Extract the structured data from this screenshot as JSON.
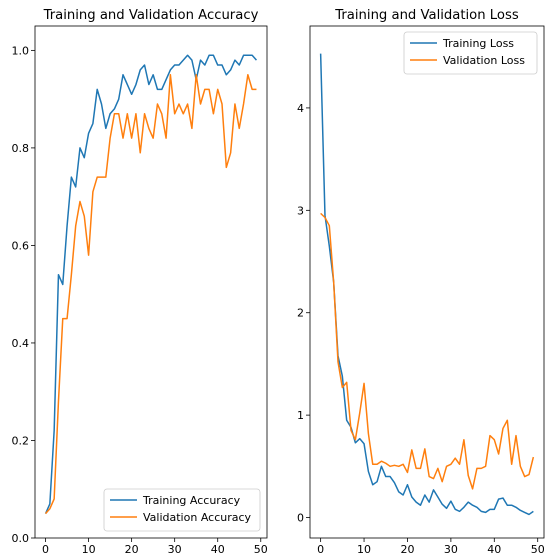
{
  "chart_data": [
    {
      "type": "line",
      "title": "Training and Validation Accuracy",
      "xlabel": "",
      "ylabel": "",
      "xlim": [
        -2.45,
        51.45
      ],
      "ylim": [
        0.0,
        1.05
      ],
      "xticks": [
        0,
        10,
        20,
        30,
        40,
        50
      ],
      "yticks": [
        0.0,
        0.2,
        0.4,
        0.6,
        0.8,
        1.0
      ],
      "legend": "lower-right",
      "grid": false,
      "x": [
        0,
        1,
        2,
        3,
        4,
        5,
        6,
        7,
        8,
        9,
        10,
        11,
        12,
        13,
        14,
        15,
        16,
        17,
        18,
        19,
        20,
        21,
        22,
        23,
        24,
        25,
        26,
        27,
        28,
        29,
        30,
        31,
        32,
        33,
        34,
        35,
        36,
        37,
        38,
        39,
        40,
        41,
        42,
        43,
        44,
        45,
        46,
        47,
        48,
        49
      ],
      "series": [
        {
          "name": "Training Accuracy",
          "color": "#1f77b4",
          "values": [
            0.05,
            0.07,
            0.22,
            0.54,
            0.52,
            0.64,
            0.74,
            0.72,
            0.8,
            0.78,
            0.83,
            0.85,
            0.92,
            0.89,
            0.84,
            0.87,
            0.88,
            0.9,
            0.95,
            0.93,
            0.91,
            0.93,
            0.96,
            0.97,
            0.93,
            0.95,
            0.92,
            0.92,
            0.94,
            0.96,
            0.97,
            0.97,
            0.98,
            0.99,
            0.98,
            0.94,
            0.98,
            0.97,
            0.99,
            0.99,
            0.97,
            0.97,
            0.95,
            0.96,
            0.98,
            0.97,
            0.99,
            0.99,
            0.99,
            0.98
          ]
        },
        {
          "name": "Validation Accuracy",
          "color": "#ff7f0e",
          "values": [
            0.05,
            0.06,
            0.08,
            0.28,
            0.45,
            0.45,
            0.54,
            0.64,
            0.69,
            0.66,
            0.58,
            0.71,
            0.74,
            0.74,
            0.74,
            0.82,
            0.87,
            0.87,
            0.82,
            0.87,
            0.82,
            0.87,
            0.79,
            0.87,
            0.84,
            0.82,
            0.89,
            0.87,
            0.82,
            0.95,
            0.87,
            0.89,
            0.87,
            0.89,
            0.84,
            0.95,
            0.89,
            0.92,
            0.92,
            0.87,
            0.92,
            0.89,
            0.76,
            0.79,
            0.89,
            0.84,
            0.89,
            0.95,
            0.92,
            0.92
          ]
        }
      ]
    },
    {
      "type": "line",
      "title": "Training and Validation Loss",
      "xlabel": "",
      "ylabel": "",
      "xlim": [
        -2.45,
        51.45
      ],
      "ylim": [
        -0.2,
        4.8
      ],
      "xticks": [
        0,
        10,
        20,
        30,
        40,
        50
      ],
      "yticks": [
        0,
        1,
        2,
        3,
        4
      ],
      "legend": "upper-right",
      "grid": false,
      "x": [
        0,
        1,
        2,
        3,
        4,
        5,
        6,
        7,
        8,
        9,
        10,
        11,
        12,
        13,
        14,
        15,
        16,
        17,
        18,
        19,
        20,
        21,
        22,
        23,
        24,
        25,
        26,
        27,
        28,
        29,
        30,
        31,
        32,
        33,
        34,
        35,
        36,
        37,
        38,
        39,
        40,
        41,
        42,
        43,
        44,
        45,
        46,
        47,
        48,
        49
      ],
      "series": [
        {
          "name": "Training Loss",
          "color": "#1f77b4",
          "values": [
            4.53,
            2.95,
            2.65,
            2.3,
            1.58,
            1.38,
            0.95,
            0.88,
            0.73,
            0.77,
            0.72,
            0.45,
            0.32,
            0.35,
            0.5,
            0.4,
            0.4,
            0.34,
            0.25,
            0.22,
            0.32,
            0.2,
            0.15,
            0.12,
            0.22,
            0.15,
            0.27,
            0.2,
            0.13,
            0.09,
            0.16,
            0.08,
            0.06,
            0.1,
            0.15,
            0.12,
            0.1,
            0.06,
            0.05,
            0.08,
            0.08,
            0.18,
            0.19,
            0.12,
            0.12,
            0.1,
            0.07,
            0.05,
            0.03,
            0.06
          ]
        },
        {
          "name": "Validation Loss",
          "color": "#ff7f0e",
          "values": [
            2.97,
            2.93,
            2.85,
            2.3,
            1.52,
            1.27,
            1.32,
            0.85,
            0.76,
            1.02,
            1.31,
            0.82,
            0.52,
            0.52,
            0.55,
            0.53,
            0.5,
            0.51,
            0.5,
            0.52,
            0.44,
            0.66,
            0.48,
            0.48,
            0.67,
            0.4,
            0.38,
            0.48,
            0.35,
            0.5,
            0.52,
            0.58,
            0.52,
            0.76,
            0.41,
            0.28,
            0.48,
            0.48,
            0.5,
            0.8,
            0.76,
            0.62,
            0.87,
            0.95,
            0.52,
            0.8,
            0.5,
            0.4,
            0.42,
            0.59
          ]
        }
      ]
    }
  ]
}
